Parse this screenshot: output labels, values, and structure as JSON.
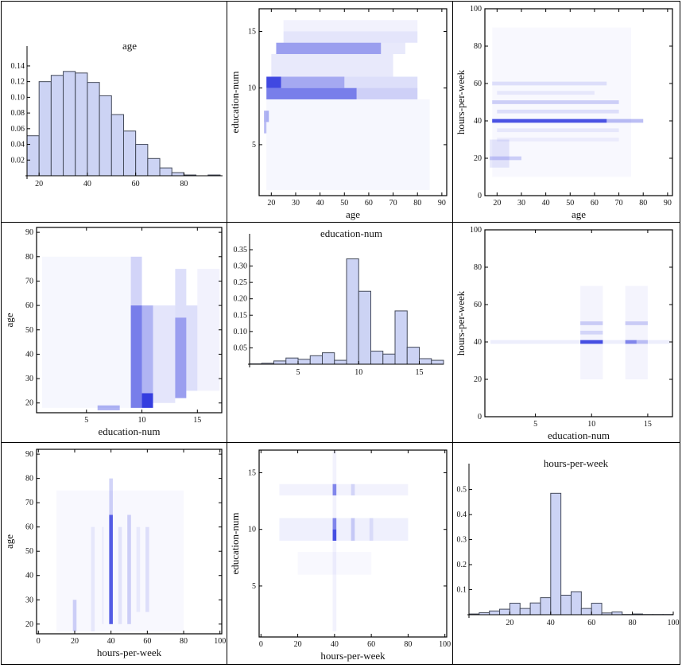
{
  "chart_data": [
    {
      "type": "bar",
      "title": "age",
      "xlim": [
        15,
        96
      ],
      "ylim": [
        0,
        0.145
      ],
      "xticks": [
        20,
        40,
        60,
        80
      ],
      "yticks": [
        0.02,
        0.04,
        0.06,
        0.08,
        0.1,
        0.12,
        0.14
      ],
      "bin_width": 5,
      "bin_starts": [
        15,
        20,
        25,
        30,
        35,
        40,
        45,
        50,
        55,
        60,
        65,
        70,
        75,
        80,
        85,
        90
      ],
      "values": [
        0.051,
        0.12,
        0.128,
        0.133,
        0.131,
        0.119,
        0.102,
        0.078,
        0.057,
        0.04,
        0.022,
        0.01,
        0.004,
        0.001,
        0,
        0.001
      ]
    },
    {
      "type": "heatmap",
      "xlabel": "age",
      "ylabel": "education-num",
      "xlim": [
        15,
        92
      ],
      "ylim": [
        0.5,
        17
      ],
      "xticks": [
        20,
        30,
        40,
        50,
        60,
        70,
        80,
        90
      ],
      "yticks": [
        5,
        10,
        15
      ],
      "bands": [
        [
          18,
          85,
          1,
          9,
          0.04
        ],
        [
          20,
          70,
          11,
          13,
          0.1
        ],
        [
          25,
          80,
          15,
          16,
          0.06
        ],
        [
          25,
          80,
          14,
          15,
          0.12
        ],
        [
          22,
          65,
          13,
          14,
          0.45
        ],
        [
          65,
          75,
          13,
          14,
          0.1
        ],
        [
          18,
          55,
          9,
          10,
          0.6
        ],
        [
          55,
          80,
          9,
          10,
          0.22
        ],
        [
          18,
          24,
          10,
          11,
          0.85
        ],
        [
          24,
          50,
          10,
          11,
          0.4
        ],
        [
          50,
          80,
          10,
          11,
          0.15
        ],
        [
          17,
          19,
          7,
          8,
          0.35
        ],
        [
          17,
          18,
          6,
          7,
          0.3
        ]
      ]
    },
    {
      "type": "heatmap",
      "xlabel": "age",
      "ylabel": "hours-per-week",
      "xlim": [
        15,
        92
      ],
      "ylim": [
        0,
        100
      ],
      "xticks": [
        20,
        30,
        40,
        50,
        60,
        70,
        80,
        90
      ],
      "yticks": [
        0,
        20,
        40,
        60,
        80,
        100
      ],
      "bands": [
        [
          18,
          75,
          10,
          90,
          0.03
        ],
        [
          17,
          25,
          15,
          30,
          0.1
        ],
        [
          20,
          70,
          29,
          31,
          0.06
        ],
        [
          20,
          70,
          34,
          36,
          0.08
        ],
        [
          18,
          65,
          39,
          41,
          0.8
        ],
        [
          65,
          80,
          39,
          41,
          0.3
        ],
        [
          20,
          70,
          44,
          46,
          0.12
        ],
        [
          18,
          70,
          49,
          51,
          0.2
        ],
        [
          20,
          60,
          54,
          56,
          0.08
        ],
        [
          18,
          65,
          59,
          61,
          0.12
        ],
        [
          17,
          30,
          19,
          21,
          0.2
        ]
      ]
    },
    {
      "type": "heatmap",
      "xlabel": "education-num",
      "ylabel": "age",
      "xlim": [
        0.5,
        17.2
      ],
      "ylim": [
        16,
        92
      ],
      "xticks": [
        5,
        10,
        15
      ],
      "yticks": [
        20,
        30,
        40,
        50,
        60,
        70,
        80,
        90
      ],
      "bands": [
        [
          1,
          9,
          18,
          80,
          0.04
        ],
        [
          15,
          17,
          25,
          75,
          0.06
        ],
        [
          11,
          13,
          20,
          60,
          0.12
        ],
        [
          9,
          10,
          18,
          60,
          0.6
        ],
        [
          9,
          10,
          60,
          80,
          0.2
        ],
        [
          10,
          11,
          24,
          60,
          0.35
        ],
        [
          10,
          11,
          18,
          24,
          0.9
        ],
        [
          13,
          14,
          22,
          55,
          0.45
        ],
        [
          13,
          14,
          55,
          75,
          0.15
        ],
        [
          14,
          15,
          25,
          60,
          0.15
        ],
        [
          6,
          8,
          17,
          19,
          0.35
        ]
      ]
    },
    {
      "type": "bar",
      "title": "education-num",
      "xlim": [
        1,
        17
      ],
      "ylim": [
        0,
        0.35
      ],
      "xticks": [
        5,
        10,
        15
      ],
      "yticks": [
        0.05,
        0.1,
        0.15,
        0.2,
        0.25,
        0.3,
        0.35
      ],
      "bin_width": 1,
      "bin_starts": [
        1,
        2,
        3,
        4,
        5,
        6,
        7,
        8,
        9,
        10,
        11,
        12,
        13,
        14,
        15,
        16
      ],
      "values": [
        0.001,
        0.003,
        0.01,
        0.019,
        0.015,
        0.026,
        0.035,
        0.012,
        0.322,
        0.223,
        0.04,
        0.031,
        0.163,
        0.052,
        0.017,
        0.012
      ]
    },
    {
      "type": "heatmap",
      "xlabel": "education-num",
      "ylabel": "hours-per-week",
      "xlim": [
        0.5,
        17.2
      ],
      "ylim": [
        0,
        100
      ],
      "xticks": [
        5,
        10,
        15
      ],
      "yticks": [
        0,
        20,
        40,
        60,
        80,
        100
      ],
      "bands": [
        [
          9,
          11,
          20,
          70,
          0.05
        ],
        [
          13,
          15,
          20,
          70,
          0.05
        ],
        [
          1,
          17,
          39,
          41,
          0.08
        ],
        [
          9,
          11,
          39,
          41,
          0.8
        ],
        [
          13,
          14,
          39,
          41,
          0.5
        ],
        [
          14,
          15,
          39,
          41,
          0.2
        ],
        [
          9,
          11,
          44,
          46,
          0.15
        ],
        [
          9,
          11,
          49,
          51,
          0.2
        ],
        [
          13,
          15,
          49,
          51,
          0.2
        ]
      ]
    },
    {
      "type": "heatmap",
      "xlabel": "hours-per-week",
      "ylabel": "age",
      "xlim": [
        -1,
        101
      ],
      "ylim": [
        16,
        92
      ],
      "xticks": [
        0,
        20,
        40,
        60,
        80,
        100
      ],
      "yticks": [
        20,
        30,
        40,
        50,
        60,
        70,
        80,
        90
      ],
      "bands": [
        [
          10,
          80,
          17,
          75,
          0.03
        ],
        [
          29,
          31,
          17,
          60,
          0.08
        ],
        [
          35,
          36,
          20,
          60,
          0.06
        ],
        [
          39,
          41,
          20,
          65,
          0.75
        ],
        [
          39,
          41,
          65,
          80,
          0.2
        ],
        [
          44,
          46,
          20,
          60,
          0.1
        ],
        [
          49,
          51,
          20,
          65,
          0.2
        ],
        [
          54,
          56,
          25,
          60,
          0.07
        ],
        [
          59,
          61,
          25,
          60,
          0.12
        ],
        [
          19,
          21,
          17,
          30,
          0.2
        ]
      ]
    },
    {
      "type": "heatmap",
      "xlabel": "hours-per-week",
      "ylabel": "education-num",
      "xlim": [
        -1,
        101
      ],
      "ylim": [
        0.5,
        17
      ],
      "xticks": [
        0,
        20,
        40,
        60,
        80,
        100
      ],
      "yticks": [
        5,
        10,
        15
      ],
      "bands": [
        [
          20,
          60,
          6,
          8,
          0.03
        ],
        [
          10,
          80,
          9,
          11,
          0.07
        ],
        [
          10,
          80,
          13,
          14,
          0.06
        ],
        [
          39,
          41,
          1,
          17,
          0.06
        ],
        [
          39,
          41,
          9,
          10,
          0.8
        ],
        [
          39,
          41,
          10,
          11,
          0.5
        ],
        [
          39,
          41,
          13,
          14,
          0.5
        ],
        [
          49,
          51,
          9,
          11,
          0.2
        ],
        [
          49,
          51,
          13,
          14,
          0.15
        ],
        [
          59,
          61,
          9,
          11,
          0.1
        ]
      ]
    },
    {
      "type": "bar",
      "title": "hours-per-week",
      "xlim": [
        0,
        100
      ],
      "ylim": [
        0,
        0.54
      ],
      "xticks": [
        20,
        40,
        60,
        80,
        100
      ],
      "yticks": [
        0.1,
        0.2,
        0.3,
        0.4,
        0.5
      ],
      "bin_width": 5,
      "bin_starts": [
        0,
        5,
        10,
        15,
        20,
        25,
        30,
        35,
        40,
        45,
        50,
        55,
        60,
        65,
        70,
        75,
        80,
        85,
        90,
        95
      ],
      "values": [
        0.003,
        0.008,
        0.015,
        0.022,
        0.046,
        0.025,
        0.047,
        0.068,
        0.485,
        0.078,
        0.092,
        0.025,
        0.046,
        0.007,
        0.011,
        0.001,
        0.003,
        0.001,
        0.001,
        0.001
      ]
    }
  ],
  "colors": {
    "bar_fill": "#ccd3f4",
    "bar_stroke": "#444a5a",
    "density": "#1e28dc"
  }
}
